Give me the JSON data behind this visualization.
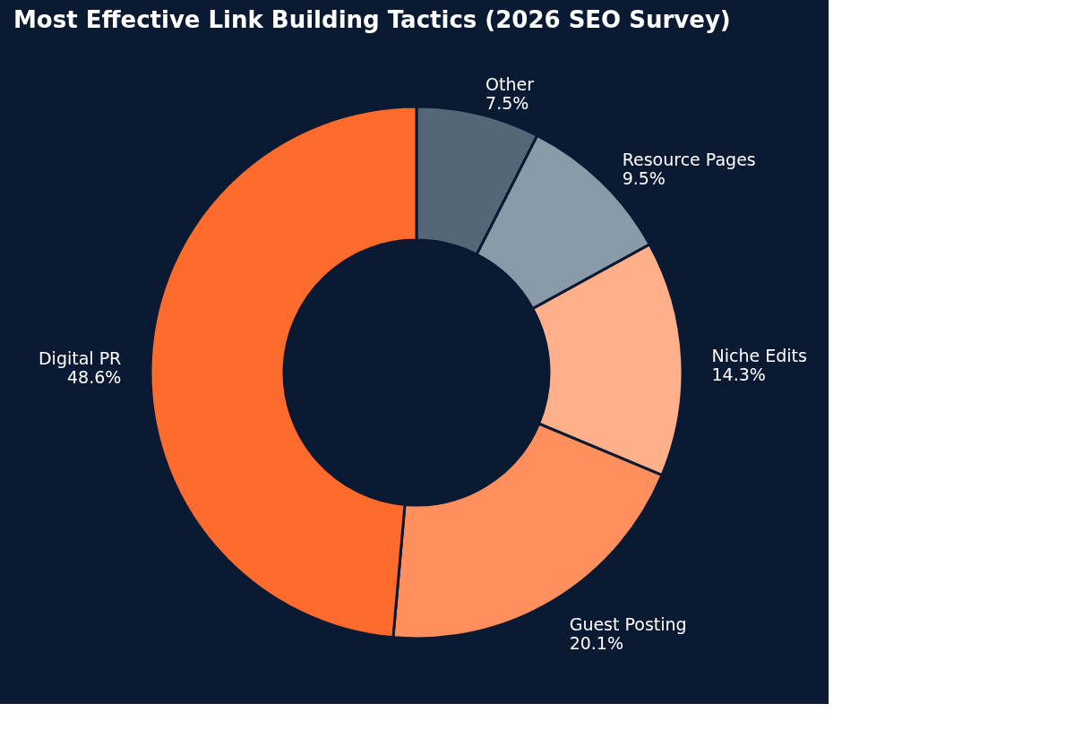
{
  "chart_data": {
    "type": "donut",
    "title": "Most Effective Link Building Tactics (2026 SEO Survey)",
    "categories": [
      "Other",
      "Resource Pages",
      "Niche Edits",
      "Guest Posting",
      "Digital PR"
    ],
    "values": [
      7.5,
      9.5,
      14.3,
      20.1,
      48.6
    ],
    "colors": [
      "#556677",
      "#8a9aa9",
      "#ffb08a",
      "#ff8f5c",
      "#ff6b2c"
    ],
    "value_labels": [
      "7.5%",
      "9.5%",
      "14.3%",
      "20.1%",
      "48.6%"
    ],
    "legend": false
  }
}
